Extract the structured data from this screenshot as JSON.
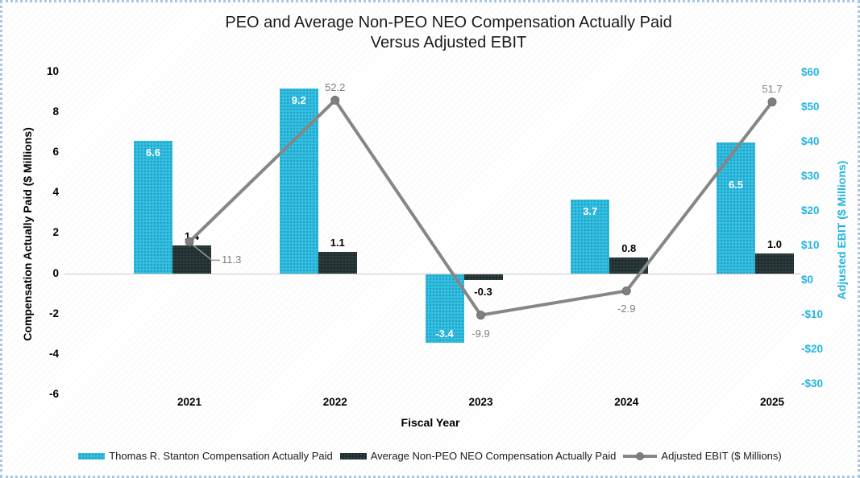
{
  "title": {
    "line1": "PEO and Average Non-PEO NEO Compensation Actually Paid",
    "line2": "Versus Adjusted EBIT"
  },
  "axes": {
    "left_title": "Compensation Actually Paid ($ Millions)",
    "right_title": "Adjusted EBIT ($ Millions)",
    "x_title": "Fiscal Year",
    "left_tick_labels": [
      "10",
      "8",
      "6",
      "4",
      "2",
      "0",
      "-2",
      "-4",
      "-6"
    ],
    "left_tick_values": [
      10,
      8,
      6,
      4,
      2,
      0,
      -2,
      -4,
      -6
    ],
    "right_tick_labels": [
      "$60",
      "$50",
      "$40",
      "$30",
      "$20",
      "$10",
      "$0",
      "-$10",
      "-$20",
      "-$30"
    ],
    "right_tick_values": [
      60,
      50,
      40,
      30,
      20,
      10,
      0,
      -10,
      -20,
      -30
    ]
  },
  "chart_data": {
    "type": "combo",
    "categories": [
      "2021",
      "2022",
      "2023",
      "2024",
      "2025"
    ],
    "series": [
      {
        "name": "Thomas R. Stanton Compensation Actually Paid",
        "type": "bar",
        "axis": "left",
        "values": [
          6.6,
          9.2,
          -3.4,
          3.7,
          6.5
        ],
        "labels": [
          "6.6",
          "9.2",
          "-3.4",
          "3.7",
          "6.5"
        ],
        "color": "#33c1e4"
      },
      {
        "name": "Average Non-PEO NEO Compensation Actually Paid",
        "type": "bar",
        "axis": "left",
        "values": [
          1.4,
          1.1,
          -0.3,
          0.8,
          1.0
        ],
        "labels": [
          "1.4",
          "1.1",
          "-0.3",
          "0.8",
          "1.0"
        ],
        "color": "#222d2e"
      },
      {
        "name": "Adjusted EBIT ($ Millions)",
        "type": "line",
        "axis": "right",
        "values": [
          11.3,
          52.2,
          -9.9,
          -2.9,
          51.7
        ],
        "labels": [
          "11.3",
          "52.2",
          "-9.9",
          "-2.9",
          "51.7"
        ],
        "color": "#868686"
      }
    ],
    "title": "PEO and Average Non-PEO NEO Compensation Actually Paid Versus Adjusted EBIT",
    "xlabel": "Fiscal Year",
    "ylabel_left": "Compensation Actually Paid ($ Millions)",
    "ylabel_right": "Adjusted EBIT ($ Millions)",
    "left_axis": {
      "min": -6,
      "max": 10,
      "step": 2
    },
    "right_axis": {
      "min": -30,
      "max": 60,
      "step": 10
    },
    "grid": "zero-line-only",
    "legend_position": "bottom",
    "layout_hints": {
      "line_label_pos": [
        "leader-right",
        "above",
        "below",
        "below",
        "above"
      ],
      "peo_label_extra_dy": [
        0,
        0,
        0,
        0,
        38
      ]
    }
  },
  "legend": {
    "items": [
      {
        "label": "Thomas R. Stanton Compensation Actually Paid",
        "swatch": "bar-peo"
      },
      {
        "label": "Average Non-PEO NEO Compensation Actually Paid",
        "swatch": "bar-neo"
      },
      {
        "label": "Adjusted EBIT ($ Millions)",
        "swatch": "line"
      }
    ]
  },
  "colors": {
    "peo_bar": "#33c1e4",
    "neo_bar": "#222d2e",
    "line": "#868686",
    "marker": "#7f7f7f",
    "right_axis_text": "#25b4e2",
    "line_label_text": "#7f7f7f",
    "zero_line": "#c8c8c8",
    "border": "#a6c8e8",
    "title_text": "#1a1a1a"
  }
}
